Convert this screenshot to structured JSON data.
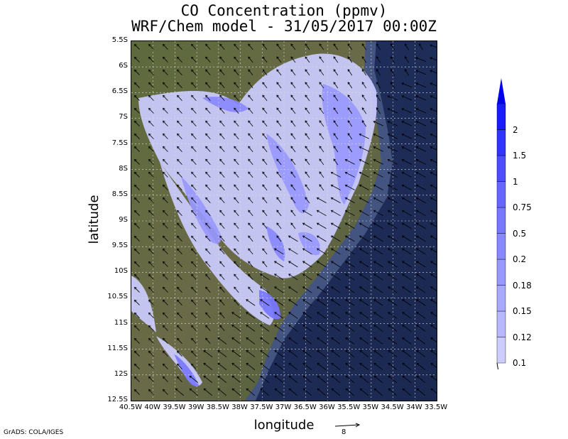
{
  "title": {
    "line1": "CO Concentration (ppmv)",
    "line2": "WRF/Chem model - 31/05/2017 00:00Z"
  },
  "axes": {
    "xlabel": "longitude",
    "ylabel": "latitude",
    "xticks": [
      "40.5W",
      "40W",
      "39.5W",
      "39W",
      "38.5W",
      "38W",
      "37.5W",
      "37W",
      "36.5W",
      "36W",
      "35.5W",
      "35W",
      "34.5W",
      "34W",
      "33.5W"
    ],
    "yticks": [
      "5.5S",
      "6S",
      "6.5S",
      "7S",
      "7.5S",
      "8S",
      "8.5S",
      "9S",
      "9.5S",
      "10S",
      "10.5S",
      "11S",
      "11.5S",
      "12S",
      "12.5S"
    ],
    "xlim": [
      -40.5,
      -33.5
    ],
    "ylim": [
      -12.5,
      -5.5
    ]
  },
  "colorbar": {
    "levels": [
      "0.1",
      "0.12",
      "0.15",
      "0.18",
      "0.2",
      "0.5",
      "0.75",
      "1",
      "1.5",
      "2"
    ],
    "colors": [
      "#ccccff",
      "#b8b8ff",
      "#a8a8ff",
      "#9898ff",
      "#8888ff",
      "#7777ff",
      "#6666ff",
      "#4d4dff",
      "#3333ff",
      "#1a1aff",
      "#0000ee"
    ]
  },
  "reference_vector": {
    "label": "8"
  },
  "credit": "GrADS: COLA/IGES",
  "colors": {
    "ocean": "#1e2c55",
    "land": "#4e5c3a",
    "grid": "#dddddd",
    "arrow": "#000000"
  }
}
